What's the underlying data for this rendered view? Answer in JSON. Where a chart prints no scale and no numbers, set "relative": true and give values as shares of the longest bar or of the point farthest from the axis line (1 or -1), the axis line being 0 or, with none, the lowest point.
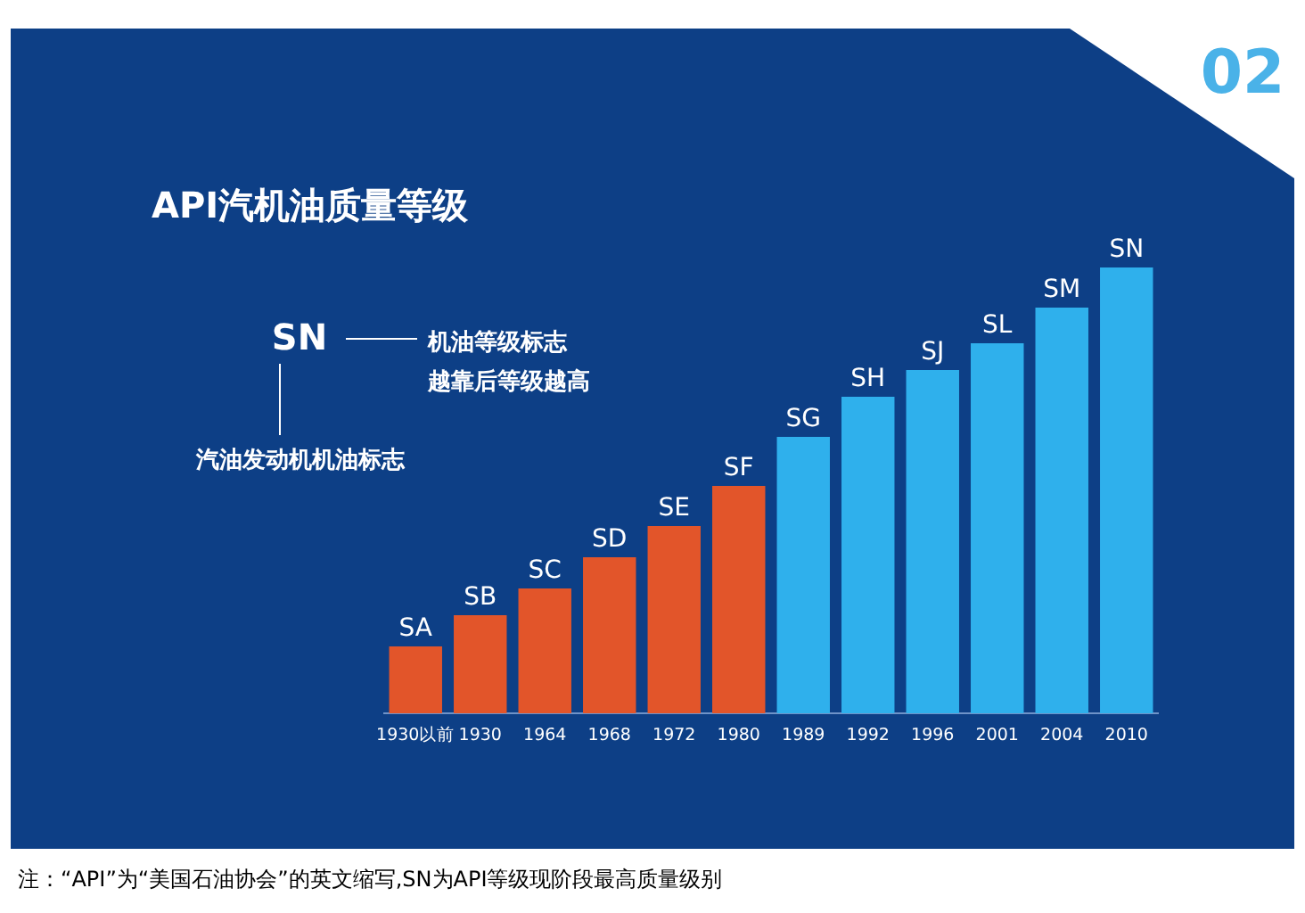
{
  "chart_data": {
    "type": "bar",
    "relative": true,
    "title": "API汽机油质量等级",
    "categories": [
      "1930以前",
      "1930",
      "1964",
      "1968",
      "1972",
      "1980",
      "1989",
      "1992",
      "1996",
      "2001",
      "2004",
      "2010"
    ],
    "values": [
      0.15,
      0.22,
      0.28,
      0.35,
      0.42,
      0.51,
      0.62,
      0.71,
      0.77,
      0.83,
      0.91,
      1
    ],
    "colors": [
      "#e2552a",
      "#e2552a",
      "#e2552a",
      "#e2552a",
      "#e2552a",
      "#e2552a",
      "#2fb0ec",
      "#2fb0ec",
      "#2fb0ec",
      "#2fb0ec",
      "#2fb0ec",
      "#2fb0ec"
    ],
    "annotations": [
      "02",
      "SN",
      "机油等级标志",
      "越靠后等级越高",
      "汽油发动机机油标志",
      "注：“API”为“美国石油协会”的英文缩写,SN为API等级现阶段最高质量级别",
      "SA",
      "SB",
      "SC",
      "SD",
      "SE",
      "SF",
      "SG",
      "SH",
      "SJ",
      "SL",
      "SM",
      "SN"
    ]
  }
}
